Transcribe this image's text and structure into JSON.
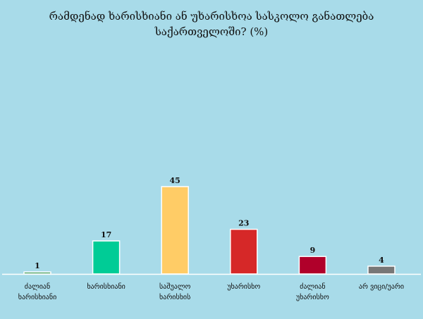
{
  "chart_data": {
    "type": "bar",
    "title_lines": [
      "რამდენად ხარისხიანი ან უხარისხოა სასკოლო განათლება",
      "საქართველოში? (%)"
    ],
    "categories": [
      [
        "ძალიან",
        "ხარისხიანი"
      ],
      [
        "ხარისხიანი"
      ],
      [
        "საშუალო",
        "ხარისხის"
      ],
      [
        "უხარისხო"
      ],
      [
        "ძალიან",
        "უხარისხო"
      ],
      [
        "არ ვიცი/უარი"
      ]
    ],
    "values": [
      1,
      17,
      45,
      23,
      9,
      4
    ],
    "colors": [
      "#3a9a5a",
      "#00cc96",
      "#ffcc66",
      "#d62828",
      "#b0002a",
      "#777777"
    ],
    "ylim": [
      0,
      50
    ],
    "grid": false,
    "legend": "none"
  }
}
